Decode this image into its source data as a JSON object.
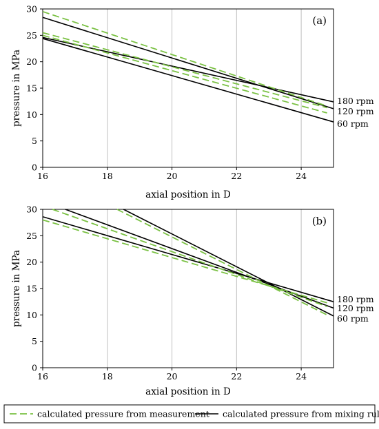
{
  "chart_data": [
    {
      "type": "line",
      "panel_label": "(a)",
      "xlabel": "axial position in D",
      "ylabel": "pressure in MPa",
      "xlim": [
        16,
        25
      ],
      "ylim": [
        0,
        30
      ],
      "x_ticks": [
        16,
        18,
        20,
        22,
        24
      ],
      "y_ticks": [
        0,
        5,
        10,
        15,
        20,
        25,
        30
      ],
      "grid": "vertical",
      "series": [
        {
          "name": "180 rpm",
          "style": "mixing",
          "x": [
            16,
            25
          ],
          "y": [
            24.6,
            12.4
          ]
        },
        {
          "name": "120 rpm",
          "style": "mixing",
          "x": [
            16,
            25
          ],
          "y": [
            28.4,
            11.1
          ]
        },
        {
          "name": "60 rpm",
          "style": "mixing",
          "x": [
            16,
            25
          ],
          "y": [
            24.4,
            8.6
          ]
        },
        {
          "name": "180 rpm",
          "style": "measurement",
          "x": [
            16,
            24.8
          ],
          "y": [
            25.5,
            11.3
          ]
        },
        {
          "name": "120 rpm",
          "style": "measurement",
          "x": [
            16,
            24.8
          ],
          "y": [
            29.5,
            11.6
          ]
        },
        {
          "name": "60 rpm",
          "style": "measurement",
          "x": [
            16,
            24.8
          ],
          "y": [
            25.0,
            10.3
          ]
        }
      ],
      "line_labels": [
        {
          "text": "180 rpm",
          "y": 12.6
        },
        {
          "text": "120 rpm",
          "y": 10.6
        },
        {
          "text": "60 rpm",
          "y": 8.3
        }
      ]
    },
    {
      "type": "line",
      "panel_label": "(b)",
      "xlabel": "axial position in D",
      "ylabel": "pressure in MPa",
      "xlim": [
        16,
        25
      ],
      "ylim": [
        0,
        30
      ],
      "x_ticks": [
        16,
        18,
        20,
        22,
        24
      ],
      "y_ticks": [
        0,
        5,
        10,
        15,
        20,
        25,
        30
      ],
      "grid": "vertical",
      "series": [
        {
          "name": "180 rpm",
          "style": "mixing",
          "x": [
            16,
            25
          ],
          "y": [
            28.6,
            12.5
          ]
        },
        {
          "name": "120 rpm",
          "style": "mixing",
          "x": [
            16.7,
            25
          ],
          "y": [
            30.0,
            11.3
          ]
        },
        {
          "name": "60 rpm",
          "style": "mixing",
          "x": [
            18.5,
            25
          ],
          "y": [
            30.0,
            9.8
          ]
        },
        {
          "name": "180 rpm",
          "style": "measurement",
          "x": [
            16,
            24.8
          ],
          "y": [
            28.0,
            12.3
          ]
        },
        {
          "name": "120 rpm",
          "style": "measurement",
          "x": [
            16.3,
            24.8
          ],
          "y": [
            30.0,
            11.6
          ]
        },
        {
          "name": "60 rpm",
          "style": "measurement",
          "x": [
            18.3,
            24.8
          ],
          "y": [
            30.0,
            10.0
          ]
        }
      ],
      "line_labels": [
        {
          "text": "180 rpm",
          "y": 13.0
        },
        {
          "text": "120 rpm",
          "y": 11.3
        },
        {
          "text": "60 rpm",
          "y": 9.3
        }
      ]
    }
  ],
  "legend": {
    "placement": "bottom",
    "items": [
      {
        "label": "calculated pressure from measurement",
        "style": "measurement"
      },
      {
        "label": "calculated pressure from mixing rule",
        "style": "mixing"
      }
    ]
  },
  "colors": {
    "measurement": "#7ac143",
    "mixing": "#000000",
    "grid": "#bfbfbf",
    "axis": "#000000"
  }
}
